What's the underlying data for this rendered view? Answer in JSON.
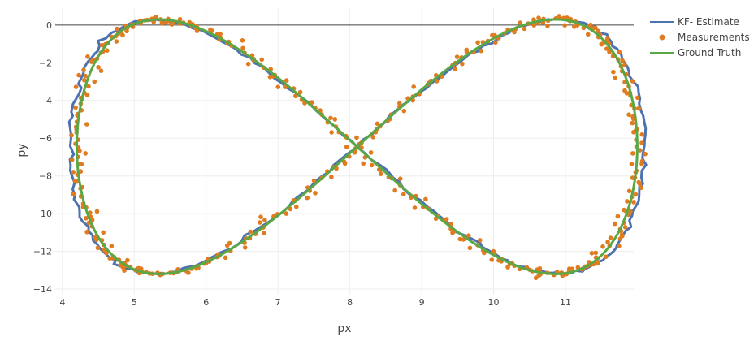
{
  "chart_data": {
    "type": "scatter",
    "xlabel": "px",
    "ylabel": "py",
    "xlim": [
      3.9,
      11.95
    ],
    "ylim": [
      -14.3,
      0.9
    ],
    "x_ticks": [
      4,
      5,
      6,
      7,
      8,
      9,
      10,
      11
    ],
    "y_ticks": [
      0,
      -2,
      -4,
      -6,
      -8,
      -10,
      -12,
      -14
    ],
    "y_tick_labels": [
      "0",
      "−2",
      "−4",
      "−6",
      "−8",
      "−10",
      "−12",
      "−14"
    ],
    "grid": true,
    "legend_position": "top-right",
    "trajectory": {
      "description_shape": "figure-eight",
      "x_center": 8.1,
      "x_amplitude": 3.9,
      "y_center": -6.45,
      "y_amplitude": 6.75
    },
    "series": [
      {
        "name": "KF- Estimate",
        "mode": "lines",
        "color": "#4c72b0"
      },
      {
        "name": "Measurements",
        "mode": "markers",
        "color": "#e07b1f"
      },
      {
        "name": "Ground Truth",
        "mode": "lines",
        "color": "#5aa845"
      }
    ]
  }
}
